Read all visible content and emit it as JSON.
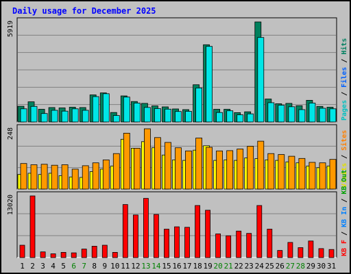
{
  "chart_data": {
    "type": "bar",
    "title": "Daily usage for December 2025",
    "categories": [
      "1",
      "2",
      "3",
      "4",
      "5",
      "6",
      "7",
      "8",
      "9",
      "10",
      "11",
      "12",
      "13",
      "14",
      "15",
      "16",
      "17",
      "18",
      "19",
      "20",
      "21",
      "22",
      "23",
      "24",
      "25",
      "26",
      "27",
      "28",
      "29",
      "30",
      "31"
    ],
    "weekend_days": [
      "6",
      "7",
      "13",
      "14",
      "20",
      "21",
      "27",
      "28"
    ],
    "panels": [
      {
        "id": "hits-files-pages",
        "ymax_label": "5919",
        "ylim": [
          0,
          5919
        ],
        "legend": [
          "Pages",
          "Files",
          "Hits"
        ],
        "series": [
          {
            "name": "Hits",
            "color": "#00805c",
            "values": [
              930,
              1190,
              750,
              850,
              830,
              870,
              850,
              1600,
              1720,
              560,
              1540,
              1210,
              1100,
              950,
              890,
              770,
              730,
              2200,
              4570,
              750,
              750,
              550,
              600,
              5919,
              1360,
              1080,
              1100,
              960,
              1280,
              920,
              870
            ]
          },
          {
            "name": "Files",
            "color": "#00e6e6",
            "values": [
              780,
              920,
              500,
              690,
              640,
              780,
              690,
              1500,
              1670,
              380,
              1470,
              1120,
              860,
              790,
              760,
              620,
              630,
              2010,
              4470,
              560,
              660,
              420,
              480,
              5000,
              1140,
              990,
              900,
              730,
              1120,
              810,
              780
            ]
          },
          {
            "name": "Pages",
            "color": "#00e6e6",
            "values": []
          }
        ]
      },
      {
        "id": "visits-sites",
        "ymax_label": "248",
        "ylim": [
          0,
          248
        ],
        "legend": [
          "Visits",
          "Sites"
        ],
        "series": [
          {
            "name": "Visits",
            "color": "#ffff00",
            "values": [
              60,
              65,
              60,
              65,
              55,
              50,
              48,
              72,
              82,
              95,
              205,
              168,
              195,
              170,
              140,
              120,
              118,
              160,
              178,
              118,
              120,
              118,
              128,
              125,
              120,
              118,
              112,
              108,
              95,
              88,
              95
            ]
          },
          {
            "name": "Sites",
            "color": "#ff9900",
            "values": [
              105,
              100,
              102,
              98,
              100,
              82,
              96,
              108,
              120,
              146,
              230,
              168,
              248,
              212,
              192,
              170,
              157,
              210,
              172,
              157,
              158,
              165,
              176,
              197,
              146,
              142,
              135,
              126,
              110,
              108,
              122
            ]
          }
        ]
      },
      {
        "id": "kbytes",
        "ymax_label": "13020",
        "ylim": [
          0,
          13020
        ],
        "legend": [
          "KB F",
          "KB In",
          "KB Out"
        ],
        "series": [
          {
            "name": "KB F",
            "color": "#ff0000",
            "values": [
              2600,
              13020,
              1200,
              800,
              1100,
              1000,
              1800,
              2400,
              2600,
              1100,
              11200,
              9000,
              12500,
              9100,
              6000,
              6500,
              6400,
              11000,
              10000,
              5000,
              4600,
              5600,
              5100,
              11000,
              6000,
              1500,
              3200,
              2100,
              3500,
              1900,
              1700
            ]
          }
        ]
      }
    ]
  }
}
